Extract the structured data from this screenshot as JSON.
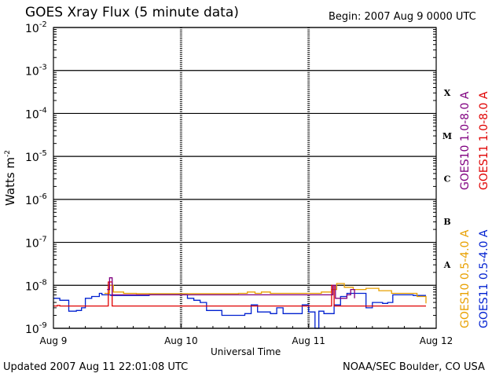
{
  "title": "GOES Xray Flux (5 minute data)",
  "begin_label": "Begin:  2007 Aug 9 0000 UTC",
  "footer": {
    "updated": "Updated 2007 Aug 11 22:01:08 UTC",
    "credit": "NOAA/SEC Boulder, CO USA"
  },
  "colors": {
    "goes10_long": "#800080",
    "goes11_long": "#e00000",
    "goes10_short": "#e8a000",
    "goes11_short": "#0020d0"
  },
  "chart_data": {
    "type": "line",
    "title": "GOES Xray Flux (5 minute data)",
    "xlabel": "Universal Time",
    "ylabel": "Watts m",
    "ylabel_sup": "-2",
    "y_scale": "log",
    "ylim": [
      1e-09,
      0.01
    ],
    "y_ticks": [
      {
        "base": "10",
        "exp": "-2"
      },
      {
        "base": "10",
        "exp": "-3"
      },
      {
        "base": "10",
        "exp": "-4"
      },
      {
        "base": "10",
        "exp": "-5"
      },
      {
        "base": "10",
        "exp": "-6"
      },
      {
        "base": "10",
        "exp": "-7"
      },
      {
        "base": "10",
        "exp": "-8"
      },
      {
        "base": "10",
        "exp": "-9"
      }
    ],
    "x_ticks": [
      "Aug 9",
      "Aug 10",
      "Aug 11",
      "Aug 12"
    ],
    "xlim_days": [
      9,
      12
    ],
    "flare_classes": [
      "X",
      "M",
      "C",
      "B",
      "A"
    ],
    "legend_right_top": [
      "GOES10 1.0-8.0 A",
      "GOES11 1.0-8.0 A"
    ],
    "legend_right_bottom": [
      "GOES10 0.5-4.0 A",
      "GOES11 0.5-4.0 A"
    ],
    "grid": true,
    "series": [
      {
        "name": "GOES11 0.5-4.0 A",
        "color": "#0020d0",
        "points": [
          [
            9.0,
            5e-09
          ],
          [
            9.05,
            4.5e-09
          ],
          [
            9.1,
            4.5e-09
          ],
          [
            9.12,
            2.5e-09
          ],
          [
            9.18,
            2.6e-09
          ],
          [
            9.22,
            3e-09
          ],
          [
            9.25,
            5e-09
          ],
          [
            9.3,
            5.5e-09
          ],
          [
            9.36,
            6.5e-09
          ],
          [
            9.38,
            6e-09
          ],
          [
            9.42,
            6e-09
          ],
          [
            9.45,
            5.8e-09
          ],
          [
            9.55,
            5.8e-09
          ],
          [
            9.65,
            5.8e-09
          ],
          [
            9.75,
            6e-09
          ],
          [
            9.85,
            6e-09
          ],
          [
            9.95,
            6e-09
          ],
          [
            10.05,
            5e-09
          ],
          [
            10.1,
            4.5e-09
          ],
          [
            10.15,
            4e-09
          ],
          [
            10.2,
            2.6e-09
          ],
          [
            10.28,
            2.6e-09
          ],
          [
            10.32,
            2e-09
          ],
          [
            10.4,
            2e-09
          ],
          [
            10.5,
            2.2e-09
          ],
          [
            10.55,
            3.5e-09
          ],
          [
            10.6,
            2.4e-09
          ],
          [
            10.7,
            2.2e-09
          ],
          [
            10.75,
            3e-09
          ],
          [
            10.8,
            2.2e-09
          ],
          [
            10.9,
            2.2e-09
          ],
          [
            10.95,
            3.5e-09
          ],
          [
            11.0,
            2.4e-09
          ],
          [
            11.05,
            1e-09
          ],
          [
            11.08,
            2.5e-09
          ],
          [
            11.12,
            2.2e-09
          ],
          [
            11.2,
            3.5e-09
          ],
          [
            11.25,
            5.5e-09
          ],
          [
            11.3,
            6.5e-09
          ],
          [
            11.4,
            6.5e-09
          ],
          [
            11.45,
            3e-09
          ],
          [
            11.5,
            4e-09
          ],
          [
            11.58,
            3.8e-09
          ],
          [
            11.62,
            4e-09
          ],
          [
            11.66,
            6e-09
          ],
          [
            11.75,
            6e-09
          ],
          [
            11.82,
            5.8e-09
          ],
          [
            11.88,
            5.8e-09
          ],
          [
            11.92,
            5.8e-09
          ]
        ]
      },
      {
        "name": "GOES10 0.5-4.0 A",
        "color": "#e8a000",
        "points": [
          [
            9.4,
            6.5e-09
          ],
          [
            9.44,
            1e-08
          ],
          [
            9.47,
            7e-09
          ],
          [
            9.55,
            6.5e-09
          ],
          [
            9.65,
            6.4e-09
          ],
          [
            9.75,
            6.4e-09
          ],
          [
            10.45,
            6.5e-09
          ],
          [
            10.52,
            7e-09
          ],
          [
            10.58,
            6.5e-09
          ],
          [
            10.63,
            7e-09
          ],
          [
            10.7,
            6.5e-09
          ],
          [
            11.1,
            7e-09
          ],
          [
            11.18,
            8e-09
          ],
          [
            11.22,
            1.1e-08
          ],
          [
            11.28,
            9e-09
          ],
          [
            11.35,
            8e-09
          ],
          [
            11.45,
            8.5e-09
          ],
          [
            11.55,
            7.5e-09
          ],
          [
            11.65,
            6.5e-09
          ],
          [
            11.75,
            6.5e-09
          ],
          [
            11.85,
            5.5e-09
          ],
          [
            11.92,
            3.8e-09
          ]
        ]
      },
      {
        "name": "GOES11 1.0-8.0 A",
        "color": "#e00000",
        "points": [
          [
            9.0,
            3.3e-09
          ],
          [
            9.03,
            3.4e-09
          ],
          [
            9.05,
            3.3e-09
          ],
          [
            9.4,
            3.3e-09
          ],
          [
            9.43,
            1.2e-08
          ],
          [
            9.46,
            3.3e-09
          ],
          [
            10.0,
            3.3e-09
          ],
          [
            10.5,
            3.3e-09
          ],
          [
            11.0,
            3.3e-09
          ],
          [
            11.15,
            3.3e-09
          ],
          [
            11.18,
            1e-08
          ],
          [
            11.2,
            3.3e-09
          ],
          [
            11.5,
            3.3e-09
          ],
          [
            11.92,
            3.3e-09
          ]
        ]
      },
      {
        "name": "GOES10 1.0-8.0 A",
        "color": "#800080",
        "points": [
          [
            9.42,
            8e-09
          ],
          [
            9.44,
            1.5e-08
          ],
          [
            9.46,
            6e-09
          ],
          [
            11.17,
            6e-09
          ],
          [
            11.19,
            1e-08
          ],
          [
            11.21,
            5e-09
          ],
          [
            11.3,
            6e-09
          ],
          [
            11.33,
            8e-09
          ],
          [
            11.36,
            5e-09
          ]
        ]
      }
    ]
  }
}
